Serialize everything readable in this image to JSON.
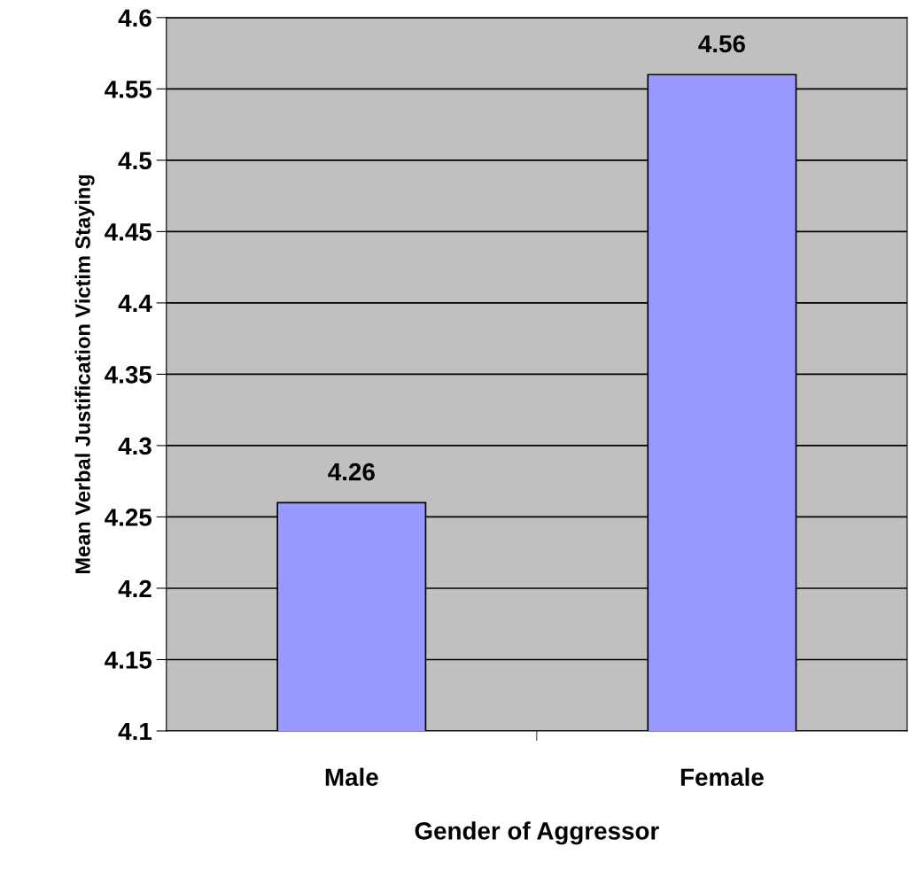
{
  "chart_data": {
    "type": "bar",
    "xlabel": "Gender of Aggressor",
    "ylabel": "Mean Verbal Justification Victim Staying",
    "categories": [
      "Male",
      "Female"
    ],
    "values": [
      4.26,
      4.56
    ],
    "color": "#9999ff",
    "ylim": [
      4.1,
      4.6
    ],
    "yticks": [
      4.1,
      4.15,
      4.2,
      4.25,
      4.3,
      4.35,
      4.4,
      4.45,
      4.5,
      4.55,
      4.6
    ],
    "data_labels": true,
    "grid": "y"
  }
}
